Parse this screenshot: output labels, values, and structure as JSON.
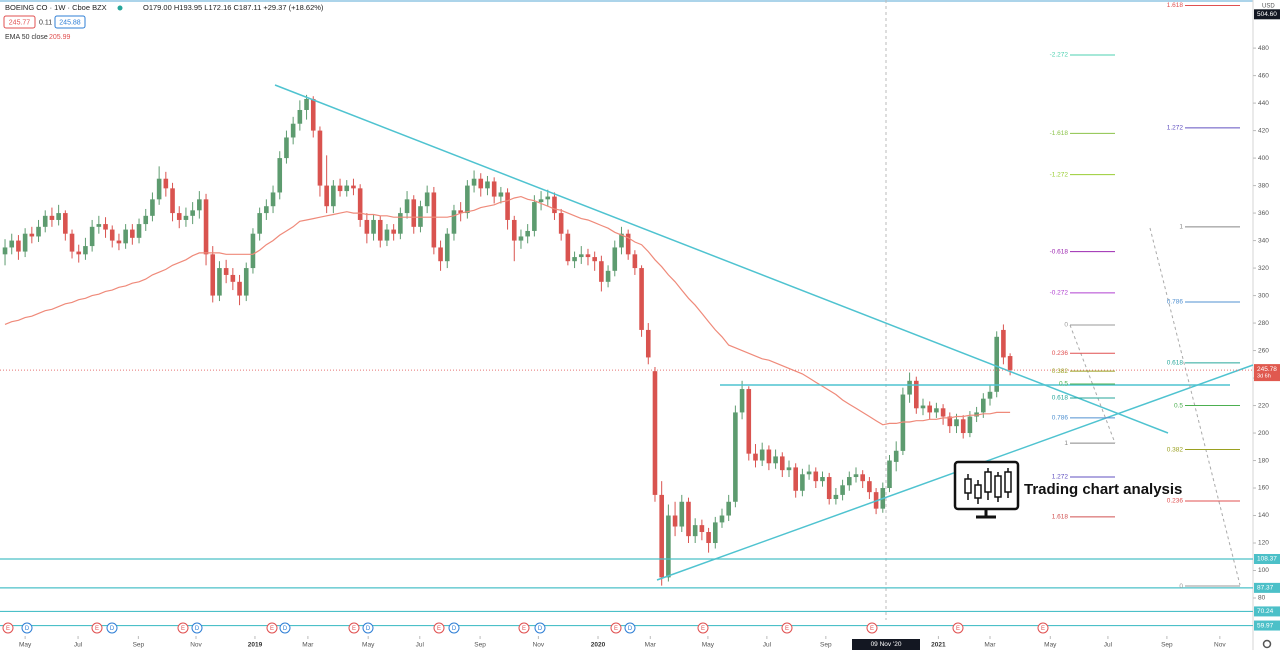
{
  "chart_data": {
    "type": "candlestick",
    "title": "BOEING CO · 1W · Cboe BZX",
    "ohlc_text": "O179.00 H193.95 L172.16 C187.11 +29.37 (+18.62%)",
    "bid": 245.77,
    "spread": 0.11,
    "ask": 245.88,
    "up_color": "#5d9b6f",
    "down_color": "#d9534f",
    "open": [
      330,
      335,
      340,
      332,
      345,
      343,
      350,
      358,
      355,
      360,
      345,
      332,
      330,
      336,
      350,
      352,
      348,
      340,
      338,
      348,
      342,
      352,
      358,
      370,
      385,
      378,
      360,
      355,
      358,
      362,
      370,
      330,
      300,
      320,
      315,
      310,
      300,
      320,
      345,
      360,
      365,
      375,
      400,
      415,
      425,
      435,
      443,
      420,
      380,
      365,
      380,
      376,
      380,
      378,
      355,
      345,
      355,
      340,
      348,
      345,
      360,
      370,
      350,
      365,
      375,
      335,
      325,
      345,
      362,
      360,
      380,
      385,
      378,
      383,
      372,
      375,
      355,
      340,
      343,
      347,
      368,
      370,
      372,
      360,
      345,
      325,
      328,
      330,
      328,
      325,
      310,
      318,
      335,
      345,
      330,
      320,
      275,
      245,
      155,
      95,
      140,
      132,
      150,
      125,
      133,
      128,
      120,
      135,
      140,
      150,
      215,
      232,
      185,
      180,
      188,
      178,
      183,
      173,
      175,
      158,
      170,
      172,
      165,
      168,
      152,
      155,
      162,
      168,
      170,
      165,
      157,
      145,
      160,
      179,
      187,
      228,
      238,
      218,
      220,
      215,
      218,
      212,
      205,
      210,
      200,
      212,
      215,
      225,
      230,
      275,
      256
    ],
    "high": [
      341,
      345,
      344,
      349,
      350,
      355,
      362,
      364,
      366,
      362,
      348,
      337,
      342,
      355,
      358,
      357,
      351,
      345,
      352,
      352,
      356,
      363,
      375,
      394,
      390,
      382,
      365,
      364,
      368,
      376,
      374,
      336,
      325,
      326,
      320,
      315,
      324,
      349,
      364,
      370,
      380,
      405,
      420,
      430,
      442,
      446,
      445,
      423,
      402,
      384,
      385,
      384,
      385,
      381,
      360,
      359,
      358,
      352,
      352,
      364,
      376,
      373,
      369,
      380,
      379,
      340,
      349,
      366,
      368,
      384,
      391,
      389,
      387,
      386,
      379,
      378,
      358,
      348,
      352,
      373,
      376,
      377,
      375,
      363,
      348,
      332,
      336,
      334,
      332,
      329,
      322,
      340,
      350,
      348,
      333,
      322,
      280,
      248,
      165,
      148,
      150,
      155,
      153,
      138,
      137,
      131,
      139,
      145,
      155,
      220,
      238,
      234,
      192,
      193,
      191,
      188,
      186,
      180,
      178,
      174,
      177,
      175,
      172,
      171,
      160,
      166,
      172,
      175,
      173,
      168,
      160,
      164,
      184,
      193.95,
      233,
      244,
      241,
      225,
      223,
      222,
      221,
      215,
      214,
      213,
      216,
      219,
      229,
      235,
      274,
      279,
      258
    ],
    "low": [
      322,
      330,
      326,
      328,
      338,
      339,
      346,
      350,
      351,
      340,
      327,
      324,
      326,
      332,
      345,
      342,
      335,
      333,
      334,
      337,
      338,
      347,
      354,
      366,
      372,
      354,
      349,
      350,
      352,
      356,
      322,
      295,
      296,
      309,
      304,
      293,
      296,
      316,
      340,
      355,
      360,
      370,
      396,
      410,
      420,
      428,
      415,
      372,
      360,
      360,
      372,
      372,
      373,
      350,
      338,
      340,
      335,
      336,
      340,
      341,
      356,
      345,
      346,
      360,
      330,
      318,
      320,
      340,
      354,
      356,
      375,
      372,
      373,
      367,
      367,
      348,
      325,
      334,
      338,
      343,
      362,
      365,
      355,
      340,
      322,
      320,
      323,
      322,
      318,
      303,
      306,
      314,
      330,
      326,
      315,
      270,
      250,
      150,
      89,
      92,
      125,
      128,
      120,
      120,
      122,
      113,
      116,
      131,
      136,
      146,
      210,
      180,
      175,
      176,
      173,
      174,
      168,
      168,
      153,
      154,
      166,
      160,
      161,
      148,
      148,
      151,
      158,
      164,
      160,
      152,
      141,
      142,
      157,
      172.16,
      184,
      222,
      214,
      213,
      210,
      211,
      206,
      200,
      200,
      196,
      197,
      208,
      211,
      220,
      226,
      250,
      242
    ],
    "close": [
      335,
      340,
      332,
      345,
      343,
      350,
      358,
      355,
      360,
      345,
      332,
      330,
      336,
      350,
      352,
      348,
      340,
      338,
      348,
      342,
      352,
      358,
      370,
      385,
      378,
      360,
      355,
      358,
      362,
      370,
      330,
      300,
      320,
      315,
      310,
      300,
      320,
      345,
      360,
      365,
      375,
      400,
      415,
      425,
      435,
      443,
      420,
      380,
      365,
      380,
      376,
      380,
      378,
      355,
      345,
      355,
      340,
      348,
      345,
      360,
      370,
      350,
      365,
      375,
      335,
      325,
      345,
      362,
      360,
      380,
      385,
      378,
      383,
      372,
      375,
      355,
      340,
      343,
      347,
      368,
      370,
      372,
      360,
      345,
      325,
      328,
      330,
      328,
      325,
      310,
      318,
      335,
      345,
      330,
      320,
      275,
      255,
      155,
      95,
      140,
      132,
      150,
      125,
      133,
      128,
      120,
      135,
      140,
      150,
      215,
      232,
      185,
      180,
      188,
      178,
      183,
      173,
      175,
      158,
      170,
      172,
      165,
      168,
      152,
      155,
      162,
      168,
      170,
      165,
      157,
      145,
      160,
      180,
      187.11,
      228,
      238,
      218,
      220,
      215,
      218,
      212,
      205,
      210,
      200,
      212,
      215,
      225,
      230,
      270,
      255,
      245.78
    ],
    "ema": {
      "name": "EMA 50 close",
      "last": 205.99,
      "color": "#ef8a7a",
      "values": [
        279,
        281,
        282,
        284,
        285,
        287,
        289,
        290,
        292,
        294,
        295,
        297,
        298,
        300,
        301,
        303,
        304,
        306,
        307,
        309,
        310,
        312,
        315,
        317,
        319,
        322,
        324,
        326,
        329,
        331,
        331,
        331,
        331,
        330,
        330,
        330,
        330,
        330,
        333,
        337,
        340,
        344,
        347,
        350,
        354,
        355,
        356,
        357,
        358,
        359,
        360,
        361,
        360,
        360,
        359,
        359,
        358,
        358,
        357,
        357,
        357,
        357,
        357,
        357,
        357,
        357,
        357,
        358,
        360,
        361,
        362,
        364,
        365,
        366,
        368,
        369,
        371,
        372,
        370,
        369,
        367,
        365,
        363,
        362,
        360,
        358,
        356,
        355,
        353,
        351,
        349,
        346,
        344,
        342,
        339,
        337,
        332,
        326,
        321,
        315,
        310,
        304,
        298,
        293,
        287,
        281,
        275,
        270,
        264,
        262,
        260,
        258,
        256,
        254,
        253,
        251,
        249,
        247,
        245,
        243,
        240,
        237,
        234,
        231,
        228,
        224,
        221,
        218,
        215,
        212,
        209,
        206,
        207,
        207,
        208,
        208,
        209,
        209,
        210,
        210,
        211,
        211,
        212,
        212,
        213,
        213,
        214,
        214,
        215,
        215,
        215
      ]
    },
    "xlim": [
      -0.75,
      186.25
    ],
    "ylim": [
      64,
      515
    ],
    "yticks": [
      80,
      100,
      120,
      140,
      160,
      180,
      200,
      220,
      240,
      260,
      280,
      300,
      320,
      340,
      360,
      380,
      400,
      420,
      440,
      460,
      480
    ],
    "xticks": [
      {
        "value": 3,
        "label": "May"
      },
      {
        "value": 10.9,
        "label": "Jul"
      },
      {
        "value": 19.9,
        "label": "Sep"
      },
      {
        "value": 28.5,
        "label": "Nov"
      },
      {
        "value": 37.3,
        "label": "2019"
      },
      {
        "value": 45.2,
        "label": "Mar"
      },
      {
        "value": 54.2,
        "label": "May"
      },
      {
        "value": 61.9,
        "label": "Jul"
      },
      {
        "value": 70.9,
        "label": "Sep"
      },
      {
        "value": 79.6,
        "label": "Nov"
      },
      {
        "value": 88.5,
        "label": "2020"
      },
      {
        "value": 96.3,
        "label": "Mar"
      },
      {
        "value": 104.9,
        "label": "May"
      },
      {
        "value": 113.7,
        "label": "Jul"
      },
      {
        "value": 122.5,
        "label": "Sep"
      },
      {
        "value": 139.3,
        "label": "2021"
      },
      {
        "value": 147,
        "label": "Mar"
      },
      {
        "value": 156,
        "label": "May"
      },
      {
        "value": 164.6,
        "label": "Jul"
      },
      {
        "value": 173.4,
        "label": "Sep"
      },
      {
        "value": 181.3,
        "label": "Nov"
      }
    ],
    "crosshair_label": "09 Nov '20",
    "currency": "USD",
    "marker_price": {
      "value": 504.6,
      "label": "504.60"
    },
    "last_price": 245.78,
    "countdown": "3d 6h",
    "horizontal_lines": [
      108.37,
      87.37,
      70.24,
      59.97
    ],
    "fib_sets": [
      {
        "levels": [
          {
            "label": "-2.272",
            "value": 475,
            "color": "#4dd0b0"
          },
          {
            "label": "-1.618",
            "value": 418,
            "color": "#8bc34a"
          },
          {
            "label": "-1.272",
            "value": 388,
            "color": "#9acd32"
          },
          {
            "label": "-0.618",
            "value": 332,
            "color": "#9c27b0"
          },
          {
            "label": "-0.272",
            "value": 302,
            "color": "#b040d0"
          },
          {
            "label": "0",
            "value": 278.6,
            "color": "#999999"
          },
          {
            "label": "0.236",
            "value": 258,
            "color": "#e05050"
          },
          {
            "label": "0.382",
            "value": 245,
            "color": "#9aa020"
          },
          {
            "label": "0.5",
            "value": 235.7,
            "color": "#4caf50"
          },
          {
            "label": "0.618",
            "value": 225.5,
            "color": "#26a69a"
          },
          {
            "label": "0.786",
            "value": 211,
            "color": "#5090d0"
          },
          {
            "label": "1",
            "value": 192.7,
            "color": "#888888"
          },
          {
            "label": "1.272",
            "value": 168,
            "color": "#6050c0"
          },
          {
            "label": "1.618",
            "value": 139,
            "color": "#d05050"
          }
        ]
      },
      {
        "levels": [
          {
            "label": "1.618",
            "value": 511,
            "color": "#e05050"
          },
          {
            "label": "1.272",
            "value": 422,
            "color": "#6050c0"
          },
          {
            "label": "1",
            "value": 350,
            "color": "#888888"
          },
          {
            "label": "0.786",
            "value": 295.3,
            "color": "#5090d0"
          },
          {
            "label": "0.618",
            "value": 251,
            "color": "#26a69a"
          },
          {
            "label": "0.5",
            "value": 220,
            "color": "#4caf50"
          },
          {
            "label": "0.382",
            "value": 188,
            "color": "#9aa020"
          },
          {
            "label": "0.236",
            "value": 150.6,
            "color": "#e05050"
          },
          {
            "label": "0",
            "value": 88.7,
            "color": "#999999"
          }
        ]
      }
    ],
    "events": [
      "E",
      "D",
      "E",
      "D",
      "E",
      "D",
      "E",
      "D",
      "E",
      "D",
      "E",
      "D",
      "E",
      "D",
      "E",
      "D",
      "E",
      "E",
      "E",
      "E",
      "E"
    ],
    "brand": "Trading chart analysis"
  }
}
